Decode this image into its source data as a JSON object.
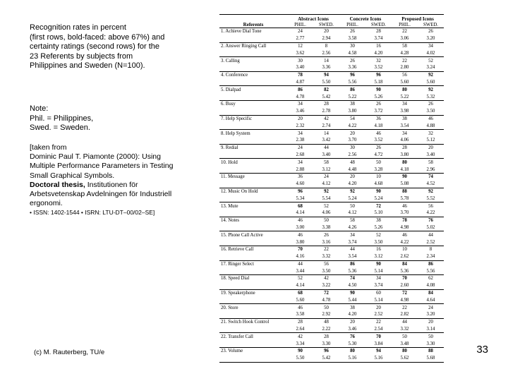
{
  "slide": {
    "caption": "Recognition rates in percent\n(first rows, bold-faced: above 67%) and\ncertainty ratings (second rows) for the\n23 Referents by subjects from\nPhilippines and Sweden (N=100).",
    "note": "Note:\nPhil. = Philippines,\nSwed. = Sweden.",
    "source": {
      "intro": "[taken from\nDominic Paul T. Piamonte (2000): Using\nMultiple Performance Parameters in Testing\nSmall Graphical Symbols.",
      "thesis_bold": "Doctoral thesis,",
      "thesis_rest": " Institutionen för",
      "affiliation": "Arbetsvetenskap Avdelningen för Industriell\nergonomi.",
      "issn": "• ISSN: 1402-1544 • ISRN: LTU-DT–00/02–SE]"
    },
    "footer": "(c) M. Rauterberg, TU/e",
    "page_number": "33"
  },
  "table": {
    "referents_header": "Referents",
    "col_groups": [
      "Abstract Icons",
      "Concrete Icons",
      "Proposed Icons"
    ],
    "sub_headers": [
      "PHIL.",
      "SWED.",
      "PHIL.",
      "SWED.",
      "PHIL.",
      "SWED."
    ],
    "bold_threshold": 67,
    "rows": [
      {
        "label": "1. Achieve Dial Tone",
        "rates": [
          "24",
          "20",
          "26",
          "28",
          "22",
          "26"
        ],
        "cert": [
          "2.77",
          "2.94",
          "3.58",
          "3.74",
          "3.06",
          "3.20"
        ]
      },
      {
        "label": "2. Answer Ringing Call",
        "rates": [
          "12",
          "8",
          "30",
          "16",
          "58",
          "34"
        ],
        "cert": [
          "3.62",
          "2.56",
          "4.58",
          "4.20",
          "4.28",
          "4.02"
        ]
      },
      {
        "label": "3. Calling",
        "rates": [
          "30",
          "14",
          "26",
          "32",
          "22",
          "52"
        ],
        "cert": [
          "3.40",
          "3.36",
          "3.36",
          "3.52",
          "2.80",
          "3.24"
        ]
      },
      {
        "label": "4. Conference",
        "rates": [
          "78",
          "94",
          "96",
          "96",
          "56",
          "92"
        ],
        "cert": [
          "4.87",
          "5.50",
          "5.56",
          "5.18",
          "5.60",
          "5.60"
        ]
      },
      {
        "label": "5. Dialpad",
        "rates": [
          "86",
          "82",
          "86",
          "90",
          "80",
          "92"
        ],
        "cert": [
          "4.78",
          "5.42",
          "5.22",
          "5.26",
          "5.22",
          "5.32"
        ]
      },
      {
        "label": "6. Busy",
        "rates": [
          "34",
          "28",
          "38",
          "26",
          "34",
          "26"
        ],
        "cert": [
          "3.46",
          "2.78",
          "3.80",
          "3.72",
          "3.98",
          "3.50"
        ]
      },
      {
        "label": "7. Help Specific",
        "rates": [
          "20",
          "42",
          "54",
          "36",
          "38",
          "46"
        ],
        "cert": [
          "2.32",
          "2.74",
          "4.22",
          "4.18",
          "3.54",
          "4.88"
        ]
      },
      {
        "label": "8. Help System",
        "rates": [
          "34",
          "14",
          "20",
          "46",
          "34",
          "32"
        ],
        "cert": [
          "2.38",
          "3.42",
          "3.70",
          "3.52",
          "4.06",
          "5.12"
        ]
      },
      {
        "label": "9. Redial",
        "rates": [
          "24",
          "44",
          "30",
          "26",
          "28",
          "20"
        ],
        "cert": [
          "2.68",
          "3.40",
          "2.56",
          "4.72",
          "3.80",
          "3.40"
        ]
      },
      {
        "label": "10. Hold",
        "rates": [
          "34",
          "58",
          "48",
          "50",
          "80",
          "58"
        ],
        "cert": [
          "2.88",
          "3.12",
          "4.48",
          "3.28",
          "4.18",
          "2.96"
        ]
      },
      {
        "label": "11. Message",
        "rates": [
          "36",
          "24",
          "20",
          "10",
          "90",
          "74"
        ],
        "cert": [
          "4.60",
          "4.12",
          "4.20",
          "4.68",
          "5.08",
          "4.52"
        ]
      },
      {
        "label": "12. Music On Hold",
        "rates": [
          "96",
          "92",
          "92",
          "90",
          "88",
          "92"
        ],
        "cert": [
          "5.34",
          "5.54",
          "5.24",
          "5.24",
          "5.78",
          "5.52"
        ]
      },
      {
        "label": "13. Mute",
        "rates": [
          "68",
          "52",
          "50",
          "72",
          "46",
          "56"
        ],
        "cert": [
          "4.14",
          "4.06",
          "4.12",
          "5.10",
          "3.70",
          "4.22"
        ]
      },
      {
        "label": "14. Notes",
        "rates": [
          "46",
          "50",
          "58",
          "38",
          "78",
          "76"
        ],
        "cert": [
          "3.00",
          "3.38",
          "4.26",
          "5.26",
          "4.98",
          "5.02"
        ]
      },
      {
        "label": "15. Phone Call Active",
        "rates": [
          "46",
          "26",
          "34",
          "52",
          "46",
          "44"
        ],
        "cert": [
          "3.80",
          "3.16",
          "3.74",
          "3.50",
          "4.22",
          "2.52"
        ]
      },
      {
        "label": "16. Retrieve Call",
        "rates": [
          "70",
          "22",
          "44",
          "16",
          "10",
          "8"
        ],
        "cert": [
          "4.16",
          "3.32",
          "3.54",
          "3.12",
          "2.62",
          "2.34"
        ]
      },
      {
        "label": "17. Ringer Select",
        "rates": [
          "44",
          "56",
          "86",
          "90",
          "84",
          "86"
        ],
        "cert": [
          "3.44",
          "3.50",
          "5.36",
          "5.14",
          "5.36",
          "5.56"
        ]
      },
      {
        "label": "18. Speed Dial",
        "rates": [
          "52",
          "42",
          "74",
          "34",
          "70",
          "62"
        ],
        "cert": [
          "4.14",
          "3.22",
          "4.50",
          "3.74",
          "2.60",
          "4.08"
        ]
      },
      {
        "label": "19. Speakerphone",
        "rates": [
          "68",
          "72",
          "90",
          "60",
          "72",
          "84"
        ],
        "cert": [
          "5.60",
          "4.78",
          "5.44",
          "5.14",
          "4.98",
          "4.64"
        ]
      },
      {
        "label": "20. Store",
        "rates": [
          "46",
          "50",
          "38",
          "20",
          "22",
          "24"
        ],
        "cert": [
          "3.58",
          "2.92",
          "4.20",
          "2.52",
          "2.82",
          "3.20"
        ]
      },
      {
        "label": "21. Switch Hook Control",
        "rates": [
          "28",
          "48",
          "20",
          "22",
          "44",
          "20"
        ],
        "cert": [
          "2.64",
          "2.22",
          "3.46",
          "2.54",
          "3.32",
          "3.14"
        ]
      },
      {
        "label": "22. Transfer Call",
        "rates": [
          "42",
          "28",
          "76",
          "70",
          "50",
          "50"
        ],
        "cert": [
          "3.34",
          "3.30",
          "5.30",
          "3.84",
          "3.48",
          "3.30"
        ]
      },
      {
        "label": "23. Volume",
        "rates": [
          "90",
          "96",
          "80",
          "94",
          "80",
          "88"
        ],
        "cert": [
          "5.50",
          "5.42",
          "5.16",
          "5.16",
          "5.62",
          "5.68"
        ]
      }
    ]
  }
}
